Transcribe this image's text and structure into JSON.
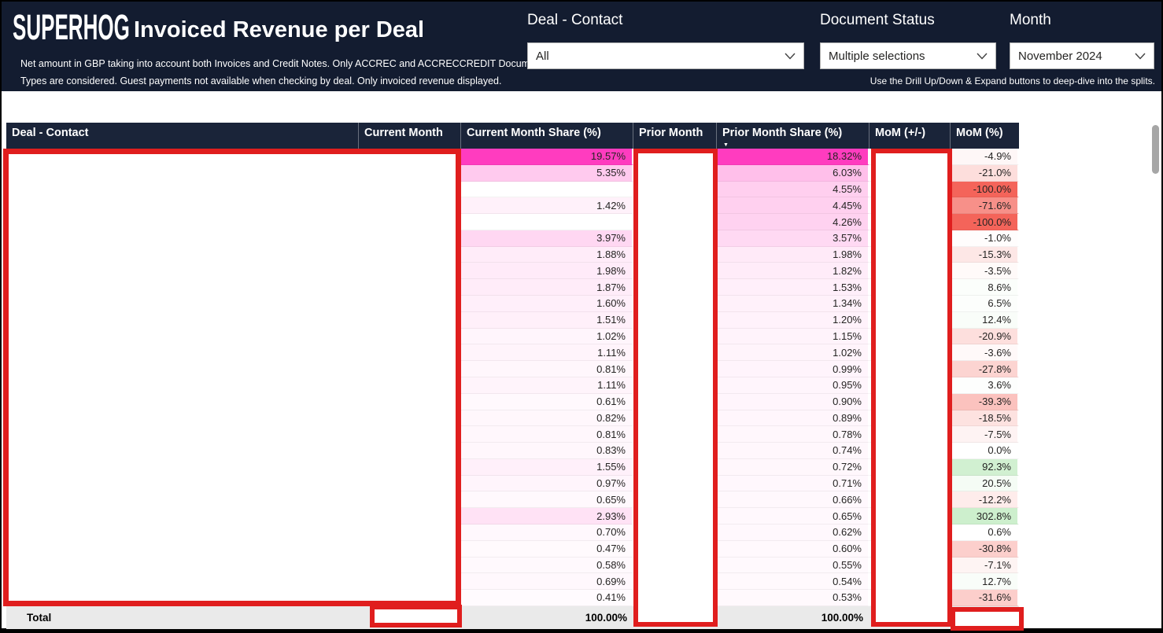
{
  "header": {
    "logo_text": "SUPERHOG",
    "title": "Invoiced Revenue per Deal",
    "subtitle_line1": "Net amount in GBP taking into account both Invoices and Credit Notes. Only ACCREC and ACCRECCREDIT Document",
    "subtitle_line2": "Types are considered. Guest payments not available when checking by deal. Only invoiced revenue displayed.",
    "drill_hint": "Use the Drill Up/Down & Expand buttons to deep-dive into the splits.",
    "filters": {
      "deal_contact": {
        "label": "Deal - Contact",
        "value": "All"
      },
      "document_status": {
        "label": "Document Status",
        "value": "Multiple selections"
      },
      "month": {
        "label": "Month",
        "value": "November 2024"
      }
    }
  },
  "table": {
    "columns": [
      "Deal - Contact",
      "Current Month",
      "Current Month Share (%)",
      "Prior Month",
      "Prior Month Share (%)",
      "MoM (+/-)",
      "MoM (%)"
    ],
    "sort": {
      "column": "Prior Month Share (%)",
      "direction": "descending"
    },
    "rows": [
      {
        "current_share": 19.57,
        "prior_share": 18.32,
        "mom_pct": -4.9
      },
      {
        "current_share": 5.35,
        "prior_share": 6.03,
        "mom_pct": -21.0
      },
      {
        "current_share": null,
        "prior_share": 4.55,
        "mom_pct": -100.0
      },
      {
        "current_share": 1.42,
        "prior_share": 4.45,
        "mom_pct": -71.6
      },
      {
        "current_share": null,
        "prior_share": 4.26,
        "mom_pct": -100.0
      },
      {
        "current_share": 3.97,
        "prior_share": 3.57,
        "mom_pct": -1.0
      },
      {
        "current_share": 1.88,
        "prior_share": 1.98,
        "mom_pct": -15.3
      },
      {
        "current_share": 1.98,
        "prior_share": 1.82,
        "mom_pct": -3.5
      },
      {
        "current_share": 1.87,
        "prior_share": 1.53,
        "mom_pct": 8.6
      },
      {
        "current_share": 1.6,
        "prior_share": 1.34,
        "mom_pct": 6.5
      },
      {
        "current_share": 1.51,
        "prior_share": 1.2,
        "mom_pct": 12.4
      },
      {
        "current_share": 1.02,
        "prior_share": 1.15,
        "mom_pct": -20.9
      },
      {
        "current_share": 1.11,
        "prior_share": 1.02,
        "mom_pct": -3.6
      },
      {
        "current_share": 0.81,
        "prior_share": 0.99,
        "mom_pct": -27.8
      },
      {
        "current_share": 1.11,
        "prior_share": 0.95,
        "mom_pct": 3.6
      },
      {
        "current_share": 0.61,
        "prior_share": 0.9,
        "mom_pct": -39.3
      },
      {
        "current_share": 0.82,
        "prior_share": 0.89,
        "mom_pct": -18.5
      },
      {
        "current_share": 0.81,
        "prior_share": 0.78,
        "mom_pct": -7.5
      },
      {
        "current_share": 0.83,
        "prior_share": 0.74,
        "mom_pct": 0.0
      },
      {
        "current_share": 1.55,
        "prior_share": 0.72,
        "mom_pct": 92.3
      },
      {
        "current_share": 0.97,
        "prior_share": 0.71,
        "mom_pct": 20.5
      },
      {
        "current_share": 0.65,
        "prior_share": 0.66,
        "mom_pct": -12.2
      },
      {
        "current_share": 2.93,
        "prior_share": 0.65,
        "mom_pct": 302.8
      },
      {
        "current_share": 0.7,
        "prior_share": 0.62,
        "mom_pct": 0.6
      },
      {
        "current_share": 0.47,
        "prior_share": 0.6,
        "mom_pct": -30.8
      },
      {
        "current_share": 0.58,
        "prior_share": 0.55,
        "mom_pct": -7.1
      },
      {
        "current_share": 0.69,
        "prior_share": 0.54,
        "mom_pct": 12.7
      },
      {
        "current_share": 0.41,
        "prior_share": 0.53,
        "mom_pct": -31.6
      }
    ],
    "total": {
      "label": "Total",
      "current_share": "100.00%",
      "prior_share": "100.00%"
    }
  },
  "icons": {
    "sort_desc": "▼"
  },
  "colors": {
    "header_navy": "#131c30",
    "table_header_navy": "#1a2439",
    "share_scale_max": "#FF3CBF",
    "mom_negative": "#F4645A",
    "mom_positive": "#CDEFCD",
    "redaction_border": "#E01E1E"
  }
}
